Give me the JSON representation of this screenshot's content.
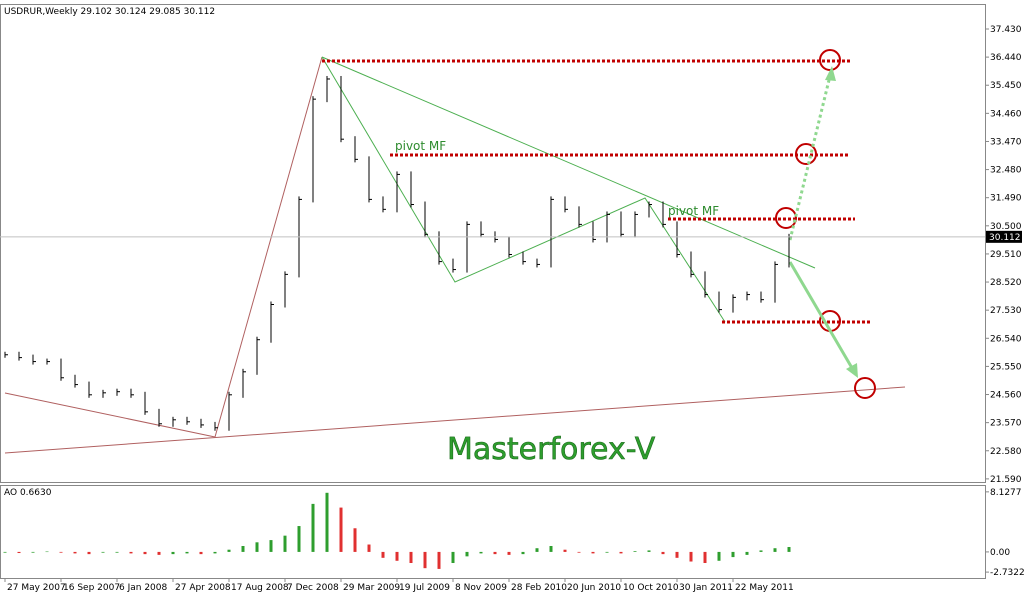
{
  "chart_data": [
    {
      "type": "ohlc",
      "title": "USDRUR,Weekly  29.102 30.124 29.085 30.112",
      "color": "#000000",
      "x": [
        0,
        4,
        8,
        12,
        16,
        20,
        24,
        28,
        32,
        36,
        40,
        44,
        48,
        52,
        56,
        60,
        64,
        68,
        72,
        76,
        80,
        84,
        88,
        92,
        96,
        100,
        104,
        108,
        112,
        116,
        120,
        124,
        128,
        132,
        136,
        140,
        144,
        148,
        152,
        156,
        160,
        164,
        168,
        172,
        176,
        180,
        184,
        188,
        192,
        196,
        200,
        204,
        208,
        212,
        216,
        220,
        224
      ],
      "values": [
        25.96,
        25.86,
        25.72,
        25.72,
        25.15,
        24.91,
        24.55,
        24.62,
        24.66,
        24.55,
        23.95,
        23.53,
        23.67,
        23.6,
        23.49,
        23.39,
        24.55,
        25.36,
        26.49,
        27.73,
        28.79,
        31.43,
        34.96,
        35.67,
        33.55,
        32.84,
        31.43,
        31.08,
        32.31,
        31.25,
        30.2,
        29.24,
        28.96,
        30.55,
        30.2,
        30.02,
        29.49,
        29.24,
        29.14,
        31.43,
        31.08,
        30.55,
        30.02,
        30.9,
        30.2,
        30.9,
        31.25,
        30.55,
        29.49,
        28.79,
        28.08,
        27.55,
        27.98,
        28.08,
        27.9,
        29.14,
        30.112
      ],
      "last_price": 30.112,
      "xlim": [
        -1.43,
        280
      ],
      "ylim": [
        21.48,
        38.31
      ],
      "xticks": [
        {
          "value": 0,
          "label": "27 May 2007"
        },
        {
          "value": 16,
          "label": "16 Sep 2007"
        },
        {
          "value": 32,
          "label": "6 Jan 2008"
        },
        {
          "value": 48,
          "label": "27 Apr 2008"
        },
        {
          "value": 64,
          "label": "17 Aug 2008"
        },
        {
          "value": 80,
          "label": "7 Dec 2008"
        },
        {
          "value": 96,
          "label": "29 Mar 2009"
        },
        {
          "value": 112,
          "label": "19 Jul 2009"
        },
        {
          "value": 128,
          "label": "8 Nov 2009"
        },
        {
          "value": 144,
          "label": "28 Feb 2010"
        },
        {
          "value": 160,
          "label": "20 Jun 2010"
        },
        {
          "value": 176,
          "label": "10 Oct 2010"
        },
        {
          "value": 192,
          "label": "30 Jan 2011"
        },
        {
          "value": 208,
          "label": "22 May 2011"
        }
      ],
      "yticks": [
        {
          "value": 37.43,
          "label": "37.430"
        },
        {
          "value": 36.44,
          "label": "36.440"
        },
        {
          "value": 35.45,
          "label": "35.450"
        },
        {
          "value": 34.46,
          "label": "34.460"
        },
        {
          "value": 33.47,
          "label": "33.470"
        },
        {
          "value": 32.48,
          "label": "32.480"
        },
        {
          "value": 31.49,
          "label": "31.490"
        },
        {
          "value": 30.5,
          "label": "30.500"
        },
        {
          "value": 29.51,
          "label": "29.510"
        },
        {
          "value": 28.52,
          "label": "28.520"
        },
        {
          "value": 27.53,
          "label": "27.530"
        },
        {
          "value": 26.54,
          "label": "26.540"
        },
        {
          "value": 25.55,
          "label": "25.550"
        },
        {
          "value": 24.56,
          "label": "24.560"
        },
        {
          "value": 23.57,
          "label": "23.570"
        },
        {
          "value": 22.58,
          "label": "22.580"
        },
        {
          "value": 21.59,
          "label": "21.590"
        }
      ],
      "annotations": [
        "pivot MF",
        "pivot MF",
        "Masterforex-V"
      ]
    },
    {
      "type": "bar",
      "title": "AO 0.6630",
      "colors": [
        "#2e9e2e",
        "#e03030"
      ],
      "x": [
        0,
        4,
        8,
        12,
        16,
        20,
        24,
        28,
        32,
        36,
        40,
        44,
        48,
        52,
        56,
        60,
        64,
        68,
        72,
        76,
        80,
        84,
        88,
        92,
        96,
        100,
        104,
        108,
        112,
        116,
        120,
        124,
        128,
        132,
        136,
        140,
        144,
        148,
        152,
        156,
        160,
        164,
        168,
        172,
        176,
        180,
        184,
        188,
        192,
        196,
        200,
        204,
        208,
        212,
        216,
        220,
        224
      ],
      "values": [
        -0.1,
        -0.15,
        -0.1,
        0.05,
        -0.1,
        -0.2,
        -0.3,
        -0.1,
        -0.1,
        -0.2,
        -0.3,
        -0.4,
        -0.3,
        -0.2,
        -0.3,
        -0.2,
        0.3,
        0.8,
        1.3,
        1.6,
        2.2,
        3.5,
        6.5,
        8.0,
        6.0,
        3.2,
        1.0,
        -0.8,
        -1.2,
        -1.5,
        -2.2,
        -2.3,
        -1.5,
        -0.6,
        -0.2,
        -0.3,
        -0.4,
        -0.3,
        0.5,
        0.8,
        0.3,
        -0.1,
        -0.2,
        -0.1,
        -0.2,
        0.1,
        0.2,
        -0.3,
        -0.8,
        -1.3,
        -1.5,
        -1.2,
        -0.7,
        -0.4,
        0.2,
        0.5,
        0.663
      ],
      "ylim": [
        -3.53,
        8.92
      ],
      "yticks": [
        8.1277,
        {
          "value": 0,
          "label": "0.00"
        },
        -2.7322
      ]
    }
  ]
}
